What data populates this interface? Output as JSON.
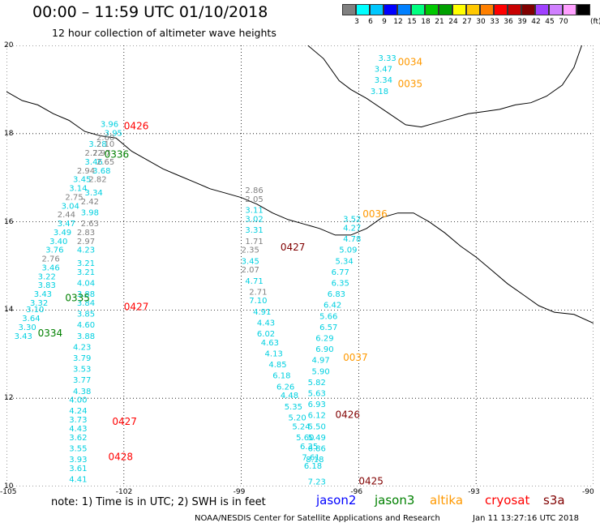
{
  "header": {
    "title": "00:00 – 11:59 UTC 01/10/2018",
    "subtitle": "12 hour collection of altimeter wave heights"
  },
  "scale": {
    "colors": [
      "#808080",
      "#00ffff",
      "#00c8ff",
      "#0000ff",
      "#0080ff",
      "#00ff80",
      "#00c800",
      "#00a000",
      "#ffff00",
      "#ffc800",
      "#ff8000",
      "#ff0000",
      "#c80000",
      "#800000",
      "#a040ff",
      "#d080ff",
      "#ffa0ff",
      "#000000"
    ],
    "labels": [
      "3",
      "6",
      "9",
      "12",
      "15",
      "18",
      "21",
      "24",
      "27",
      "30",
      "33",
      "36",
      "39",
      "42",
      "45",
      "70"
    ],
    "unit": "(ft)"
  },
  "map": {
    "lon_range": [
      -105,
      -90
    ],
    "lat_range": [
      10,
      20
    ],
    "lon_labels": [
      "-105",
      "-102",
      "-99",
      "-96",
      "-93",
      "-90"
    ],
    "lat_labels": [
      "20",
      "18",
      "16",
      "14",
      "12",
      "10"
    ],
    "lat_label_values": [
      20,
      18,
      16,
      14,
      12,
      10
    ],
    "gridlines": true
  },
  "chart_data": {
    "type": "scatter",
    "tracks": [
      {
        "satellite": "jason3",
        "passes": [
          {
            "label": "0336",
            "lon": -102.5,
            "lat": 17.45
          },
          {
            "label": "0335",
            "lon": -103.5,
            "lat": 14.2
          },
          {
            "label": "0334",
            "lon": -104.2,
            "lat": 13.4
          }
        ]
      },
      {
        "satellite": "cryosat",
        "passes": [
          {
            "label": "0426",
            "lon": -102.0,
            "lat": 18.1
          },
          {
            "label": "0427",
            "lon": -102.0,
            "lat": 14.0
          },
          {
            "label": "0427",
            "lon": -102.3,
            "lat": 11.4
          },
          {
            "label": "0428",
            "lon": -102.4,
            "lat": 10.6
          }
        ]
      },
      {
        "satellite": "s3a",
        "passes": [
          {
            "label": "0427",
            "lon": -98.0,
            "lat": 15.35
          },
          {
            "label": "0426",
            "lon": -96.6,
            "lat": 11.55
          },
          {
            "label": "0425",
            "lon": -96.0,
            "lat": 10.05
          }
        ]
      },
      {
        "satellite": "altika",
        "passes": [
          {
            "label": "0034",
            "lon": -95.0,
            "lat": 19.55
          },
          {
            "label": "0035",
            "lon": -95.0,
            "lat": 19.05
          },
          {
            "label": "0036",
            "lon": -95.9,
            "lat": 16.1
          },
          {
            "label": "0037",
            "lon": -96.4,
            "lat": 12.85
          }
        ]
      }
    ],
    "swh_points": [
      {
        "v": "3.96",
        "lon": -102.6,
        "lat": 18.15,
        "c": "#00d0e0"
      },
      {
        "v": "3.95",
        "lon": -102.5,
        "lat": 17.95,
        "c": "#00d0e0"
      },
      {
        "v": "2.60",
        "lon": -102.7,
        "lat": 17.85,
        "c": "#808080"
      },
      {
        "v": "3.28",
        "lon": -102.9,
        "lat": 17.7,
        "c": "#00d0e0"
      },
      {
        "v": "2.10",
        "lon": -102.7,
        "lat": 17.7,
        "c": "#808080"
      },
      {
        "v": "2.72",
        "lon": -103.0,
        "lat": 17.5,
        "c": "#808080"
      },
      {
        "v": "2.97",
        "lon": -102.8,
        "lat": 17.5,
        "c": "#808080"
      },
      {
        "v": "3.46",
        "lon": -103.0,
        "lat": 17.3,
        "c": "#00d0e0"
      },
      {
        "v": "2.65",
        "lon": -102.7,
        "lat": 17.3,
        "c": "#808080"
      },
      {
        "v": "2.94",
        "lon": -103.2,
        "lat": 17.1,
        "c": "#808080"
      },
      {
        "v": "3.68",
        "lon": -102.8,
        "lat": 17.1,
        "c": "#00d0e0"
      },
      {
        "v": "3.45",
        "lon": -103.3,
        "lat": 16.9,
        "c": "#00d0e0"
      },
      {
        "v": "2.82",
        "lon": -102.9,
        "lat": 16.9,
        "c": "#808080"
      },
      {
        "v": "3.14",
        "lon": -103.4,
        "lat": 16.7,
        "c": "#00d0e0"
      },
      {
        "v": "3.34",
        "lon": -103.0,
        "lat": 16.6,
        "c": "#00d0e0"
      },
      {
        "v": "2.75",
        "lon": -103.5,
        "lat": 16.5,
        "c": "#808080"
      },
      {
        "v": "2.42",
        "lon": -103.1,
        "lat": 16.4,
        "c": "#808080"
      },
      {
        "v": "3.04",
        "lon": -103.6,
        "lat": 16.3,
        "c": "#00d0e0"
      },
      {
        "v": "2.44",
        "lon": -103.7,
        "lat": 16.1,
        "c": "#808080"
      },
      {
        "v": "3.98",
        "lon": -103.1,
        "lat": 16.15,
        "c": "#00d0e0"
      },
      {
        "v": "3.47",
        "lon": -103.7,
        "lat": 15.9,
        "c": "#00d0e0"
      },
      {
        "v": "2.63",
        "lon": -103.1,
        "lat": 15.9,
        "c": "#808080"
      },
      {
        "v": "3.49",
        "lon": -103.8,
        "lat": 15.7,
        "c": "#00d0e0"
      },
      {
        "v": "2.83",
        "lon": -103.2,
        "lat": 15.7,
        "c": "#808080"
      },
      {
        "v": "3.40",
        "lon": -103.9,
        "lat": 15.5,
        "c": "#00d0e0"
      },
      {
        "v": "2.97",
        "lon": -103.2,
        "lat": 15.5,
        "c": "#808080"
      },
      {
        "v": "3.76",
        "lon": -104.0,
        "lat": 15.3,
        "c": "#00d0e0"
      },
      {
        "v": "4.23",
        "lon": -103.2,
        "lat": 15.3,
        "c": "#00d0e0"
      },
      {
        "v": "2.76",
        "lon": -104.1,
        "lat": 15.1,
        "c": "#808080"
      },
      {
        "v": "3.21",
        "lon": -103.2,
        "lat": 15.0,
        "c": "#00d0e0"
      },
      {
        "v": "3.46",
        "lon": -104.1,
        "lat": 14.9,
        "c": "#00d0e0"
      },
      {
        "v": "3.22",
        "lon": -104.2,
        "lat": 14.7,
        "c": "#00d0e0"
      },
      {
        "v": "3.21",
        "lon": -103.2,
        "lat": 14.8,
        "c": "#00d0e0"
      },
      {
        "v": "3.83",
        "lon": -104.2,
        "lat": 14.5,
        "c": "#00d0e0"
      },
      {
        "v": "4.04",
        "lon": -103.2,
        "lat": 14.55,
        "c": "#00d0e0"
      },
      {
        "v": "3.43",
        "lon": -104.3,
        "lat": 14.3,
        "c": "#00d0e0"
      },
      {
        "v": "3.88",
        "lon": -103.2,
        "lat": 14.3,
        "c": "#00d0e0"
      },
      {
        "v": "3.32",
        "lon": -104.4,
        "lat": 14.1,
        "c": "#00d0e0"
      },
      {
        "v": "3.84",
        "lon": -103.2,
        "lat": 14.1,
        "c": "#00d0e0"
      },
      {
        "v": "3.10",
        "lon": -104.5,
        "lat": 13.95,
        "c": "#00d0e0"
      },
      {
        "v": "3.85",
        "lon": -103.2,
        "lat": 13.85,
        "c": "#00d0e0"
      },
      {
        "v": "3.64",
        "lon": -104.6,
        "lat": 13.75,
        "c": "#00d0e0"
      },
      {
        "v": "4.60",
        "lon": -103.2,
        "lat": 13.6,
        "c": "#00d0e0"
      },
      {
        "v": "3.30",
        "lon": -104.7,
        "lat": 13.55,
        "c": "#00d0e0"
      },
      {
        "v": "3.88",
        "lon": -103.2,
        "lat": 13.35,
        "c": "#00d0e0"
      },
      {
        "v": "3.43",
        "lon": -104.8,
        "lat": 13.35,
        "c": "#00d0e0"
      },
      {
        "v": "4.23",
        "lon": -103.3,
        "lat": 13.1,
        "c": "#00d0e0"
      },
      {
        "v": "3.79",
        "lon": -103.3,
        "lat": 12.85,
        "c": "#00d0e0"
      },
      {
        "v": "3.53",
        "lon": -103.3,
        "lat": 12.6,
        "c": "#00d0e0"
      },
      {
        "v": "3.77",
        "lon": -103.3,
        "lat": 12.35,
        "c": "#00d0e0"
      },
      {
        "v": "4.38",
        "lon": -103.3,
        "lat": 12.1,
        "c": "#00d0e0"
      },
      {
        "v": "4.00",
        "lon": -103.4,
        "lat": 11.9,
        "c": "#00d0e0"
      },
      {
        "v": "4.24",
        "lon": -103.4,
        "lat": 11.65,
        "c": "#00d0e0"
      },
      {
        "v": "3.73",
        "lon": -103.4,
        "lat": 11.45,
        "c": "#00d0e0"
      },
      {
        "v": "4.43",
        "lon": -103.4,
        "lat": 11.25,
        "c": "#00d0e0"
      },
      {
        "v": "3.62",
        "lon": -103.4,
        "lat": 11.05,
        "c": "#00d0e0"
      },
      {
        "v": "3.55",
        "lon": -103.4,
        "lat": 10.8,
        "c": "#00d0e0"
      },
      {
        "v": "3.93",
        "lon": -103.4,
        "lat": 10.55,
        "c": "#00d0e0"
      },
      {
        "v": "3.61",
        "lon": -103.4,
        "lat": 10.35,
        "c": "#00d0e0"
      },
      {
        "v": "4.41",
        "lon": -103.4,
        "lat": 10.1,
        "c": "#00d0e0"
      },
      {
        "v": "2.86",
        "lon": -98.9,
        "lat": 16.65,
        "c": "#808080"
      },
      {
        "v": "2.05",
        "lon": -98.9,
        "lat": 16.45,
        "c": "#808080"
      },
      {
        "v": "3.11",
        "lon": -98.9,
        "lat": 16.2,
        "c": "#00d0e0"
      },
      {
        "v": "3.02",
        "lon": -98.9,
        "lat": 16.0,
        "c": "#00d0e0"
      },
      {
        "v": "3.31",
        "lon": -98.9,
        "lat": 15.75,
        "c": "#00d0e0"
      },
      {
        "v": "1.71",
        "lon": -98.9,
        "lat": 15.5,
        "c": "#808080"
      },
      {
        "v": "2.35",
        "lon": -99.0,
        "lat": 15.3,
        "c": "#808080"
      },
      {
        "v": "3.45",
        "lon": -99.0,
        "lat": 15.05,
        "c": "#00d0e0"
      },
      {
        "v": "2.07",
        "lon": -99.0,
        "lat": 14.85,
        "c": "#808080"
      },
      {
        "v": "4.71",
        "lon": -98.9,
        "lat": 14.6,
        "c": "#00d0e0"
      },
      {
        "v": "2.71",
        "lon": -98.8,
        "lat": 14.35,
        "c": "#808080"
      },
      {
        "v": "7.10",
        "lon": -98.8,
        "lat": 14.15,
        "c": "#00d0e0"
      },
      {
        "v": "4.91",
        "lon": -98.7,
        "lat": 13.9,
        "c": "#00d0e0"
      },
      {
        "v": "4.43",
        "lon": -98.6,
        "lat": 13.65,
        "c": "#00d0e0"
      },
      {
        "v": "6.02",
        "lon": -98.6,
        "lat": 13.4,
        "c": "#00d0e0"
      },
      {
        "v": "4.63",
        "lon": -98.5,
        "lat": 13.2,
        "c": "#00d0e0"
      },
      {
        "v": "4.13",
        "lon": -98.4,
        "lat": 12.95,
        "c": "#00d0e0"
      },
      {
        "v": "4.85",
        "lon": -98.3,
        "lat": 12.7,
        "c": "#00d0e0"
      },
      {
        "v": "6.18",
        "lon": -98.2,
        "lat": 12.45,
        "c": "#00d0e0"
      },
      {
        "v": "6.26",
        "lon": -98.1,
        "lat": 12.2,
        "c": "#00d0e0"
      },
      {
        "v": "4.48",
        "lon": -98.0,
        "lat": 12.0,
        "c": "#00d0e0"
      },
      {
        "v": "5.35",
        "lon": -97.9,
        "lat": 11.75,
        "c": "#00d0e0"
      },
      {
        "v": "5.20",
        "lon": -97.8,
        "lat": 11.5,
        "c": "#00d0e0"
      },
      {
        "v": "5.24",
        "lon": -97.7,
        "lat": 11.3,
        "c": "#00d0e0"
      },
      {
        "v": "5.60",
        "lon": -97.6,
        "lat": 11.05,
        "c": "#00d0e0"
      },
      {
        "v": "6.35",
        "lon": -97.5,
        "lat": 10.85,
        "c": "#00d0e0"
      },
      {
        "v": "7.61",
        "lon": -97.45,
        "lat": 10.6,
        "c": "#00d0e0"
      },
      {
        "v": "6.18",
        "lon": -97.4,
        "lat": 10.4,
        "c": "#00d0e0"
      },
      {
        "v": "7.23",
        "lon": -97.3,
        "lat": 10.05,
        "c": "#00d0e0"
      },
      {
        "v": "3.33",
        "lon": -95.5,
        "lat": 19.65,
        "c": "#00d0e0"
      },
      {
        "v": "3.47",
        "lon": -95.6,
        "lat": 19.4,
        "c": "#00d0e0"
      },
      {
        "v": "3.34",
        "lon": -95.6,
        "lat": 19.15,
        "c": "#00d0e0"
      },
      {
        "v": "3.18",
        "lon": -95.7,
        "lat": 18.9,
        "c": "#00d0e0"
      },
      {
        "v": "3.52",
        "lon": -96.4,
        "lat": 16.0,
        "c": "#00d0e0"
      },
      {
        "v": "4.27",
        "lon": -96.4,
        "lat": 15.8,
        "c": "#00d0e0"
      },
      {
        "v": "4.78",
        "lon": -96.4,
        "lat": 15.55,
        "c": "#00d0e0"
      },
      {
        "v": "5.09",
        "lon": -96.5,
        "lat": 15.3,
        "c": "#00d0e0"
      },
      {
        "v": "5.34",
        "lon": -96.6,
        "lat": 15.05,
        "c": "#00d0e0"
      },
      {
        "v": "6.77",
        "lon": -96.7,
        "lat": 14.8,
        "c": "#00d0e0"
      },
      {
        "v": "6.35",
        "lon": -96.7,
        "lat": 14.55,
        "c": "#00d0e0"
      },
      {
        "v": "6.83",
        "lon": -96.8,
        "lat": 14.3,
        "c": "#00d0e0"
      },
      {
        "v": "6.42",
        "lon": -96.9,
        "lat": 14.05,
        "c": "#00d0e0"
      },
      {
        "v": "5.66",
        "lon": -97.0,
        "lat": 13.8,
        "c": "#00d0e0"
      },
      {
        "v": "6.57",
        "lon": -97.0,
        "lat": 13.55,
        "c": "#00d0e0"
      },
      {
        "v": "6.29",
        "lon": -97.1,
        "lat": 13.3,
        "c": "#00d0e0"
      },
      {
        "v": "6.90",
        "lon": -97.1,
        "lat": 13.05,
        "c": "#00d0e0"
      },
      {
        "v": "4.97",
        "lon": -97.2,
        "lat": 12.8,
        "c": "#00d0e0"
      },
      {
        "v": "5.90",
        "lon": -97.2,
        "lat": 12.55,
        "c": "#00d0e0"
      },
      {
        "v": "5.82",
        "lon": -97.3,
        "lat": 12.3,
        "c": "#00d0e0"
      },
      {
        "v": "5.63",
        "lon": -97.3,
        "lat": 12.05,
        "c": "#00d0e0"
      },
      {
        "v": "6.93",
        "lon": -97.3,
        "lat": 11.8,
        "c": "#00d0e0"
      },
      {
        "v": "6.12",
        "lon": -97.3,
        "lat": 11.55,
        "c": "#00d0e0"
      },
      {
        "v": "5.50",
        "lon": -97.3,
        "lat": 11.3,
        "c": "#00d0e0"
      },
      {
        "v": "5.49",
        "lon": -97.3,
        "lat": 11.05,
        "c": "#00d0e0"
      },
      {
        "v": "6.86",
        "lon": -97.3,
        "lat": 10.8,
        "c": "#00d0e0"
      },
      {
        "v": "8.18",
        "lon": -97.35,
        "lat": 10.55,
        "c": "#00d0e0"
      }
    ]
  },
  "footer": {
    "note": "note: 1) Time is in UTC; 2) SWH is in feet",
    "legend": [
      {
        "name": "jason2",
        "color": "#0000ff"
      },
      {
        "name": "jason3",
        "color": "#008000"
      },
      {
        "name": "altika",
        "color": "#ff9900"
      },
      {
        "name": "cryosat",
        "color": "#ff0000"
      },
      {
        "name": "s3a",
        "color": "#800000"
      }
    ],
    "credit": "NOAA/NESDIS Center for Satellite Applications and Research",
    "timestamp": "Jan 11 13:27:16 UTC 2018"
  }
}
